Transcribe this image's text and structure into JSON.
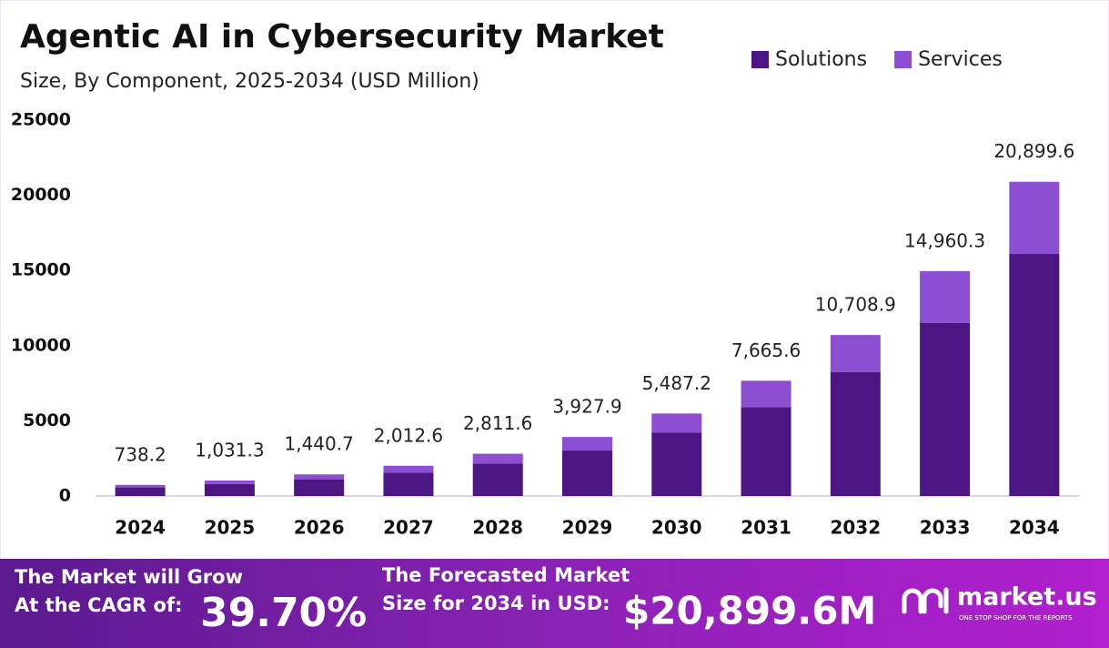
{
  "chart_data": {
    "type": "stacked_bar",
    "title": "Agentic AI in Cybersecurity Market",
    "subtitle": "Size, By Component, 2025-2034 (USD Million)",
    "categories": [
      "2024",
      "2025",
      "2026",
      "2027",
      "2028",
      "2029",
      "2030",
      "2031",
      "2032",
      "2033",
      "2034"
    ],
    "series": [
      {
        "name": "Solutions",
        "color": "#4b1682",
        "values": [
          570,
          795,
          1110,
          1550,
          2165,
          3025,
          4225,
          5905,
          8250,
          11520,
          16100
        ]
      },
      {
        "name": "Services",
        "color": "#8d4fd1",
        "values": [
          168.2,
          236.3,
          330.7,
          462.6,
          646.6,
          902.9,
          1262.2,
          1760.6,
          2458.9,
          3440.3,
          4799.6
        ]
      }
    ],
    "totals": [
      738.2,
      1031.3,
      1440.7,
      2012.6,
      2811.6,
      3927.9,
      5487.2,
      7665.6,
      10708.9,
      14960.3,
      20899.6
    ],
    "total_labels": [
      "738.2",
      "1,031.3",
      "1,440.7",
      "2,012.6",
      "2,811.6",
      "3,927.9",
      "5,487.2",
      "7,665.6",
      "10,708.9",
      "14,960.3",
      "20,899.6"
    ],
    "ylim": [
      0,
      25000
    ],
    "yticks": [
      0,
      5000,
      10000,
      15000,
      20000,
      25000
    ],
    "grid": false,
    "legend": "top-right"
  },
  "footer": {
    "grow_line1": "The Market will Grow",
    "grow_line2": "At the CAGR of:",
    "cagr": "39.70%",
    "forecast_line1": "The Forecasted Market",
    "forecast_line2": "Size for 2034 in USD:",
    "forecast_value": "$20,899.6M",
    "brand": "market.us",
    "tagline": "ONE STOP SHOP FOR THE REPORTS"
  }
}
